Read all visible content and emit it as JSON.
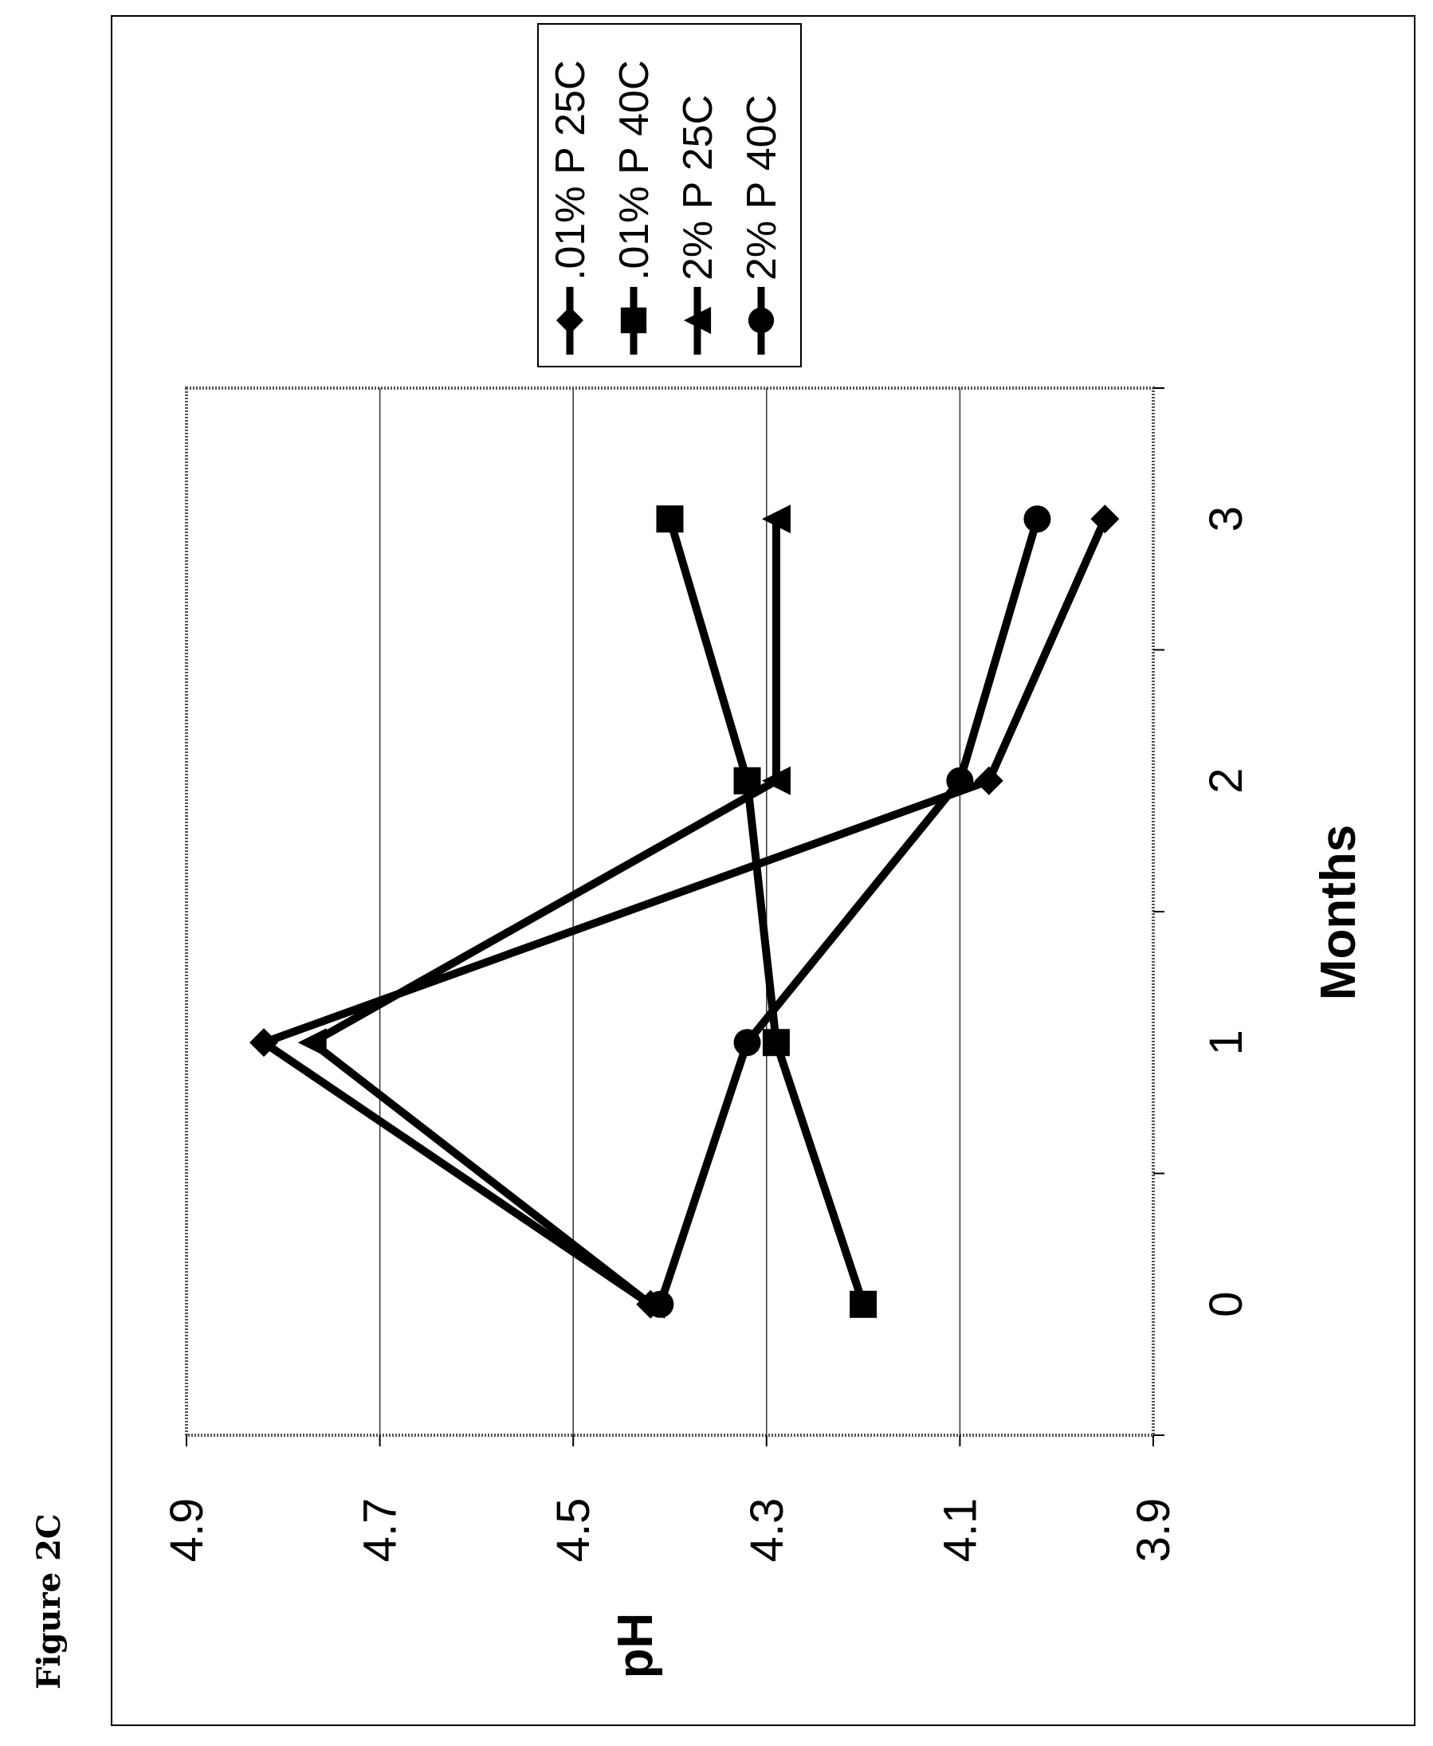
{
  "figure_label": "Figure 2C",
  "chart_data": {
    "type": "line",
    "orientation": "rotated-90-ccw",
    "title": "",
    "xlabel": "Months",
    "ylabel": "pH",
    "x_ticks": [
      "0",
      "1",
      "2",
      "3"
    ],
    "y_ticks": [
      "3.9",
      "4.1",
      "4.3",
      "4.5",
      "4.7",
      "4.9"
    ],
    "xlim": [
      -0.5,
      3.5
    ],
    "ylim": [
      3.9,
      4.9
    ],
    "grid": "horizontal major gridlines",
    "legend_position": "top-right",
    "series": [
      {
        "name": ".01% P 25C",
        "marker": "diamond",
        "x": [
          0,
          1,
          2,
          3
        ],
        "y": [
          4.42,
          4.82,
          4.07,
          3.95
        ]
      },
      {
        "name": ".01% P 40C",
        "marker": "square",
        "x": [
          0,
          1,
          2,
          3
        ],
        "y": [
          4.2,
          4.29,
          4.32,
          4.4
        ]
      },
      {
        "name": "2% P 25C",
        "marker": "triangle",
        "x": [
          0,
          1,
          2,
          3
        ],
        "y": [
          4.42,
          4.77,
          4.29,
          4.29
        ]
      },
      {
        "name": "2% P 40C",
        "marker": "circle",
        "x": [
          0,
          1,
          2,
          3
        ],
        "y": [
          4.41,
          4.32,
          4.1,
          4.02
        ]
      }
    ]
  }
}
